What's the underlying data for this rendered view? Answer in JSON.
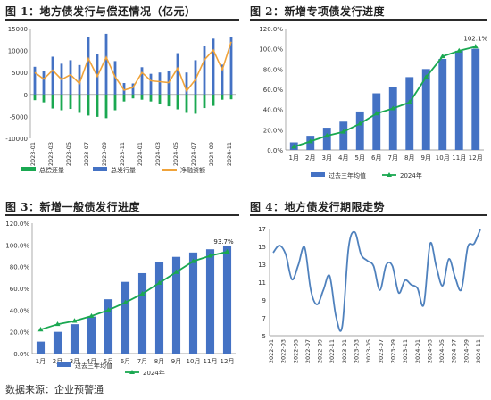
{
  "chart_data": [
    {
      "type": "bar",
      "title": "图 1：地方债发行与偿还情况（亿元）",
      "categories": [
        "2023-01",
        "2023-02",
        "2023-03",
        "2023-04",
        "2023-05",
        "2023-06",
        "2023-07",
        "2023-08",
        "2023-09",
        "2023-10",
        "2023-11",
        "2023-12",
        "2024-01",
        "2024-02",
        "2024-03",
        "2024-04",
        "2024-05",
        "2024-06",
        "2024-07",
        "2024-08",
        "2024-09",
        "2024-10",
        "2024-11"
      ],
      "x_tick_labels": [
        "2023-01",
        "2023-03",
        "2023-05",
        "2023-07",
        "2023-09",
        "2023-11",
        "2024-01",
        "2024-03",
        "2024-05",
        "2024-07",
        "2024-09",
        "2024-11"
      ],
      "ylim": [
        -10000,
        15000
      ],
      "yticks": [
        "15000",
        "10000",
        "5000",
        "0",
        "-5000",
        "-10000"
      ],
      "series": [
        {
          "name": "总偿还量",
          "type": "bar",
          "color": "#1aa851",
          "values": [
            -1300,
            -1800,
            -3200,
            -3600,
            -3300,
            -4200,
            -4800,
            -5100,
            -5400,
            -3600,
            -1600,
            -900,
            -1200,
            -1600,
            -2100,
            -2700,
            -3400,
            -4200,
            -4400,
            -3100,
            -2600,
            -1200,
            -1100
          ]
        },
        {
          "name": "总发行量",
          "type": "bar",
          "color": "#4472c4",
          "values": [
            6300,
            5300,
            8600,
            7000,
            7800,
            6700,
            13000,
            9200,
            13800,
            7600,
            2600,
            2500,
            6200,
            4700,
            5000,
            5400,
            9400,
            5000,
            7800,
            11000,
            12700,
            6800,
            13100
          ]
        },
        {
          "name": "净融资额",
          "type": "line",
          "color": "#f0a33a",
          "values": [
            5000,
            3500,
            5500,
            3400,
            4500,
            2500,
            8200,
            4100,
            8500,
            4000,
            1000,
            1600,
            5000,
            3100,
            2900,
            2700,
            6000,
            800,
            3400,
            7900,
            10100,
            5600,
            12000
          ]
        }
      ]
    },
    {
      "type": "bar",
      "title": "图 2：新增专项债发行进度",
      "categories": [
        "1月",
        "2月",
        "3月",
        "4月",
        "5月",
        "6月",
        "7月",
        "8月",
        "9月",
        "10月",
        "11月",
        "12月"
      ],
      "ylim": [
        0,
        120
      ],
      "yticks": [
        "0.0%",
        "20.0%",
        "40.0%",
        "60.0%",
        "80.0%",
        "100.0%",
        "120.0%"
      ],
      "series": [
        {
          "name": "过去三年均值",
          "type": "bar",
          "color": "#4472c4",
          "values": [
            7.5,
            14,
            22,
            28,
            38,
            56,
            62,
            72,
            80,
            90,
            98,
            100
          ]
        },
        {
          "name": "2024年",
          "type": "line",
          "color": "#1aa851",
          "values": [
            3.2,
            8.5,
            14,
            18,
            26,
            36,
            41,
            47,
            72,
            92.5,
            98,
            102.1
          ]
        }
      ],
      "annotations": [
        "102.1%"
      ]
    },
    {
      "type": "bar",
      "title": "图 3：新增一般债发行进度",
      "categories": [
        "1月",
        "2月",
        "3月",
        "4月",
        "5月",
        "6月",
        "7月",
        "8月",
        "9月",
        "10月",
        "11月",
        "12月"
      ],
      "ylim": [
        0,
        120
      ],
      "yticks": [
        "0.0%",
        "20.0%",
        "40.0%",
        "60.0%",
        "80.0%",
        "100.0%",
        "120.0%"
      ],
      "series": [
        {
          "name": "过去三年均值",
          "type": "bar",
          "color": "#4472c4",
          "values": [
            11,
            20,
            27,
            34,
            50,
            66,
            74,
            84,
            89,
            93,
            96,
            99
          ]
        },
        {
          "name": "2024年",
          "type": "line",
          "color": "#1aa851",
          "values": [
            22,
            27,
            30,
            34.5,
            40,
            47,
            55,
            65,
            75,
            85,
            90,
            93.7
          ]
        }
      ],
      "annotations": [
        "93.7%"
      ]
    },
    {
      "type": "line",
      "title": "图 4：地方债发行期限走势",
      "x_tick_labels": [
        "2022-01",
        "2022-03",
        "2022-05",
        "2022-07",
        "2022-09",
        "2022-11",
        "2023-01",
        "2023-03",
        "2023-05",
        "2023-07",
        "2023-09",
        "2023-11",
        "2024-01",
        "2024-03",
        "2024-05",
        "2024-07",
        "2024-09",
        "2024-11"
      ],
      "ylim": [
        5,
        17
      ],
      "yticks": [
        "5",
        "7",
        "9",
        "11",
        "13",
        "15",
        "17"
      ],
      "series": [
        {
          "type": "line",
          "color": "#4f81bd",
          "values": [
            14.3,
            15.1,
            14.1,
            11.3,
            12.9,
            14.9,
            10.1,
            8.5,
            10.1,
            11.7,
            7.2,
            6.0,
            14.8,
            16.6,
            14.1,
            13.4,
            12.8,
            10.1,
            12.9,
            12.8,
            9.8,
            11.2,
            10.7,
            10.3,
            8.5,
            15.3,
            12.7,
            10.6,
            13.6,
            11.5,
            10.2,
            14.9,
            15.3,
            16.9
          ]
        }
      ]
    }
  ],
  "source_text": "数据来源：企业预警通"
}
